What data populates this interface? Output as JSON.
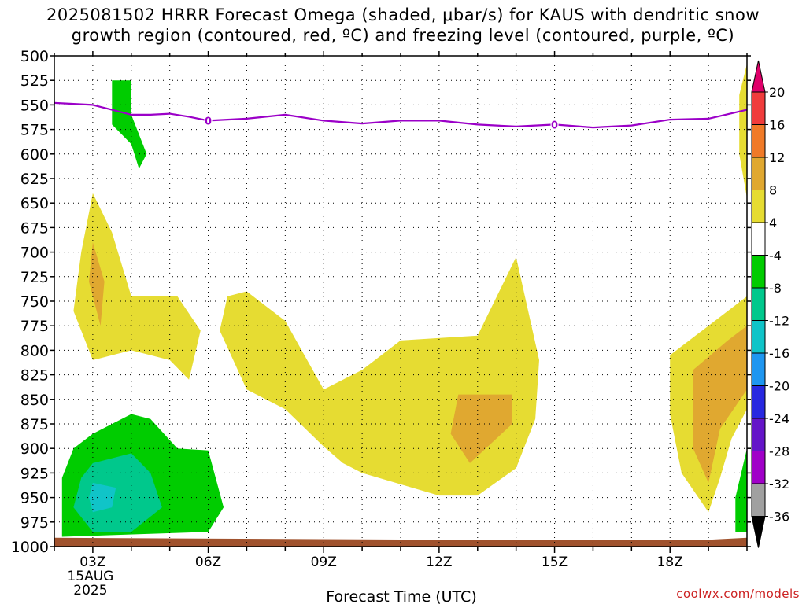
{
  "title_line1": "2025081502 HRRR Forecast Omega (shaded, μbar/s) for KAUS with dendritic snow",
  "title_line2": "growth region (contoured, red, ºC) and freezing level (contoured, purple, ºC)",
  "credit": "coolwx.com/models",
  "chart_data": {
    "type": "time-height cross section",
    "xlabel": "Forecast Time (UTC)",
    "ylabel": "",
    "x_ticks": [
      "03Z",
      "06Z",
      "09Z",
      "12Z",
      "15Z",
      "18Z"
    ],
    "x_date_lines": [
      "15AUG",
      "2025"
    ],
    "x_range_hours": [
      2,
      20
    ],
    "y_ticks": [
      500,
      525,
      550,
      575,
      600,
      625,
      650,
      675,
      700,
      725,
      750,
      775,
      800,
      825,
      850,
      875,
      900,
      925,
      950,
      975,
      1000
    ],
    "y_range_hpa": [
      500,
      1000
    ],
    "grid": true,
    "colorbar": {
      "labels": [
        "20",
        "16",
        "12",
        "8",
        "4",
        "-4",
        "-8",
        "-12",
        "-16",
        "-20",
        "-24",
        "-28",
        "-32",
        "-36"
      ],
      "bins": [
        {
          "color": "#e0006a",
          "range": [
            20,
            null
          ]
        },
        {
          "color": "#f03c3c",
          "range": [
            16,
            20
          ]
        },
        {
          "color": "#f07a28",
          "range": [
            12,
            16
          ]
        },
        {
          "color": "#e0a830",
          "range": [
            8,
            12
          ]
        },
        {
          "color": "#e6dc32",
          "range": [
            4,
            8
          ]
        },
        {
          "color": "#ffffff",
          "range": [
            -4,
            4
          ]
        },
        {
          "color": "#00cc00",
          "range": [
            -8,
            -4
          ]
        },
        {
          "color": "#00c88c",
          "range": [
            -12,
            -8
          ]
        },
        {
          "color": "#10c4c8",
          "range": [
            -16,
            -12
          ]
        },
        {
          "color": "#1e96f0",
          "range": [
            -20,
            -16
          ]
        },
        {
          "color": "#2828e0",
          "range": [
            -24,
            -20
          ]
        },
        {
          "color": "#6414c8",
          "range": [
            -28,
            -24
          ]
        },
        {
          "color": "#a000c8",
          "range": [
            -32,
            -28
          ]
        },
        {
          "color": "#a0a0a0",
          "range": [
            -36,
            -32
          ]
        },
        {
          "color": "#000000",
          "range": [
            null,
            -36
          ]
        }
      ]
    },
    "freezing_level": {
      "color": "#9b00c8",
      "label": "0",
      "label_at_hours": [
        6,
        15
      ],
      "points": [
        [
          2,
          548
        ],
        [
          3,
          550
        ],
        [
          3.5,
          555
        ],
        [
          4,
          560
        ],
        [
          4.5,
          560
        ],
        [
          5,
          559
        ],
        [
          5.5,
          562
        ],
        [
          6,
          566
        ],
        [
          7,
          564
        ],
        [
          8,
          560
        ],
        [
          9,
          566
        ],
        [
          10,
          569
        ],
        [
          11,
          566
        ],
        [
          12,
          566
        ],
        [
          13,
          570
        ],
        [
          14,
          572
        ],
        [
          15,
          570
        ],
        [
          16,
          573
        ],
        [
          17,
          571
        ],
        [
          18,
          565
        ],
        [
          19,
          564
        ],
        [
          20,
          555
        ]
      ]
    },
    "omega_regions": [
      {
        "color": "#e6dc32",
        "value_range": [
          4,
          8
        ],
        "points": [
          [
            3,
            640
          ],
          [
            3.5,
            680
          ],
          [
            4,
            745
          ],
          [
            5.2,
            745
          ],
          [
            5.8,
            780
          ],
          [
            5.5,
            830
          ],
          [
            5,
            810
          ],
          [
            4,
            800
          ],
          [
            3,
            810
          ],
          [
            2.5,
            760
          ],
          [
            2.7,
            700
          ],
          [
            3,
            640
          ]
        ]
      },
      {
        "color": "#e0a830",
        "value_range": [
          8,
          12
        ],
        "points": [
          [
            3,
            690
          ],
          [
            3.3,
            730
          ],
          [
            3.2,
            775
          ],
          [
            2.9,
            730
          ],
          [
            3,
            690
          ]
        ]
      },
      {
        "color": "#e6dc32",
        "value_range": [
          4,
          8
        ],
        "points": [
          [
            7,
            740
          ],
          [
            8,
            770
          ],
          [
            9,
            840
          ],
          [
            10,
            820
          ],
          [
            11,
            790
          ],
          [
            13,
            785
          ],
          [
            14,
            705
          ],
          [
            14.6,
            810
          ],
          [
            14.5,
            870
          ],
          [
            14,
            920
          ],
          [
            13,
            948
          ],
          [
            12,
            948
          ],
          [
            10,
            925
          ],
          [
            9.5,
            915
          ],
          [
            9,
            898
          ],
          [
            8,
            860
          ],
          [
            7,
            840
          ],
          [
            6.3,
            780
          ],
          [
            6.5,
            745
          ],
          [
            7,
            740
          ]
        ]
      },
      {
        "color": "#e0a830",
        "value_range": [
          8,
          12
        ],
        "points": [
          [
            12.5,
            845
          ],
          [
            13.9,
            845
          ],
          [
            13.9,
            875
          ],
          [
            12.8,
            915
          ],
          [
            12.3,
            885
          ],
          [
            12.5,
            845
          ]
        ]
      },
      {
        "color": "#e6dc32",
        "value_range": [
          4,
          8
        ],
        "points": [
          [
            18,
            805
          ],
          [
            19,
            775
          ],
          [
            20,
            745
          ],
          [
            20,
            860
          ],
          [
            19.6,
            890
          ],
          [
            19.3,
            930
          ],
          [
            19,
            965
          ],
          [
            18.3,
            925
          ],
          [
            18,
            865
          ],
          [
            18,
            805
          ]
        ]
      },
      {
        "color": "#e0a830",
        "value_range": [
          8,
          12
        ],
        "points": [
          [
            18.6,
            820
          ],
          [
            19.5,
            790
          ],
          [
            20,
            775
          ],
          [
            20,
            840
          ],
          [
            19.3,
            880
          ],
          [
            19,
            935
          ],
          [
            18.6,
            900
          ],
          [
            18.6,
            820
          ]
        ]
      },
      {
        "color": "#e6dc32",
        "value_range": [
          4,
          8
        ],
        "points": [
          [
            20,
            508
          ],
          [
            20,
            645
          ],
          [
            19.8,
            600
          ],
          [
            19.8,
            540
          ],
          [
            20,
            508
          ]
        ]
      },
      {
        "color": "#00cc00",
        "value_range": [
          -8,
          -4
        ],
        "points": [
          [
            3.5,
            525
          ],
          [
            4,
            525
          ],
          [
            4,
            560
          ],
          [
            4.4,
            600
          ],
          [
            4.2,
            615
          ],
          [
            4,
            590
          ],
          [
            3.5,
            570
          ],
          [
            3.5,
            525
          ]
        ]
      },
      {
        "color": "#00cc00",
        "value_range": [
          -8,
          -4
        ],
        "points": [
          [
            2.5,
            900
          ],
          [
            3,
            885
          ],
          [
            4,
            865
          ],
          [
            4.5,
            870
          ],
          [
            5.2,
            900
          ],
          [
            6,
            902
          ],
          [
            6.4,
            960
          ],
          [
            6,
            985
          ],
          [
            2.2,
            990
          ],
          [
            2.2,
            930
          ],
          [
            2.5,
            900
          ]
        ]
      },
      {
        "color": "#00c88c",
        "value_range": [
          -12,
          -8
        ],
        "points": [
          [
            3,
            915
          ],
          [
            4,
            905
          ],
          [
            4.5,
            925
          ],
          [
            4.8,
            960
          ],
          [
            4,
            985
          ],
          [
            3,
            985
          ],
          [
            2.5,
            960
          ],
          [
            2.7,
            930
          ],
          [
            3,
            915
          ]
        ]
      },
      {
        "color": "#10c4c8",
        "value_range": [
          -16,
          -12
        ],
        "points": [
          [
            3,
            935
          ],
          [
            3.6,
            940
          ],
          [
            3.5,
            960
          ],
          [
            3,
            965
          ],
          [
            2.9,
            950
          ],
          [
            3,
            935
          ]
        ]
      },
      {
        "color": "#00cc00",
        "value_range": [
          -8,
          -4
        ],
        "points": [
          [
            20,
            900
          ],
          [
            20,
            985
          ],
          [
            19.7,
            985
          ],
          [
            19.7,
            950
          ],
          [
            20,
            900
          ]
        ]
      }
    ],
    "terrain": {
      "color": "#a0522d",
      "points": [
        [
          2,
          991
        ],
        [
          12,
          993
        ],
        [
          19,
          993
        ],
        [
          20,
          991
        ],
        [
          20,
          1000
        ],
        [
          2,
          1000
        ]
      ]
    }
  }
}
